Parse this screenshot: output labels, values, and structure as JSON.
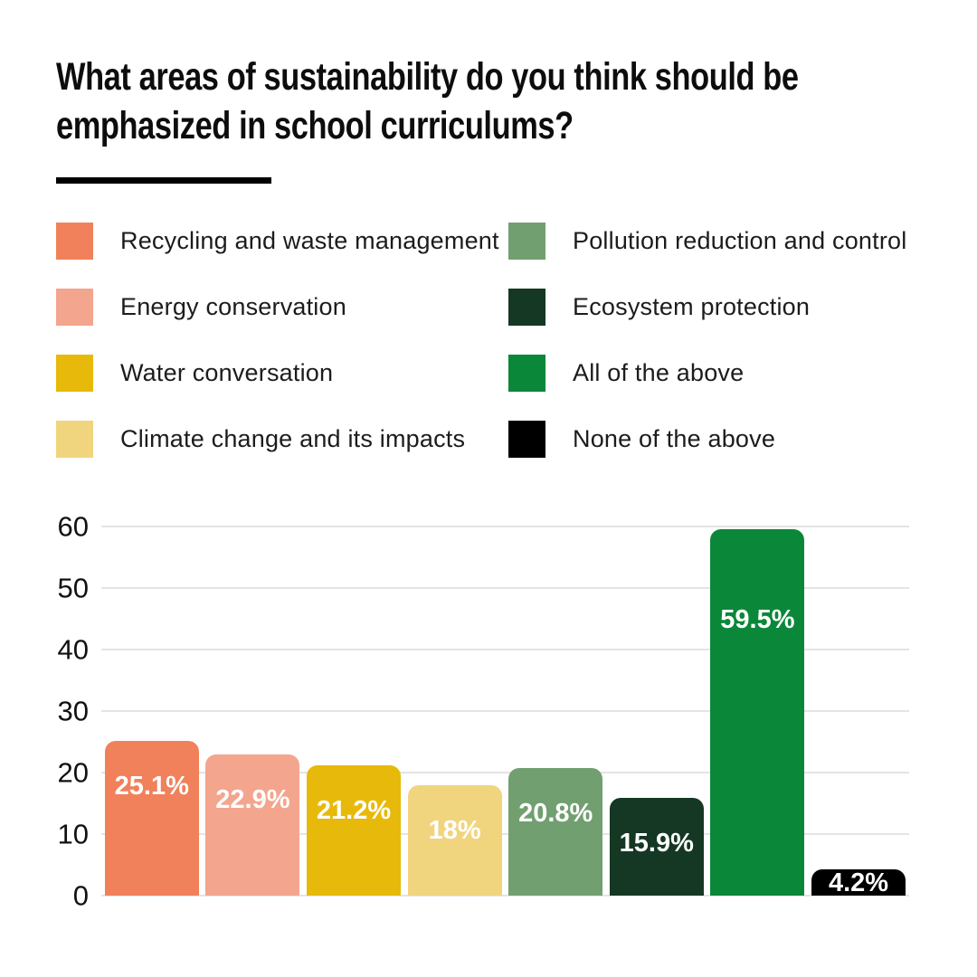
{
  "header": {
    "title": "What areas of sustainability do you think should be emphasized in school curriculums?",
    "title_lines": [
      "What areas of sustainability do you think should be",
      "emphasized in school curriculums?"
    ]
  },
  "colors": {
    "background": "#ffffff",
    "title_text": "#0d0d0d",
    "divider": "#000000",
    "gridline": "#e4e4e4",
    "axis_text": "#111111",
    "bar_label_text": "#ffffff"
  },
  "legend": {
    "items": [
      {
        "label": "Recycling and waste management",
        "color": "#f0815b"
      },
      {
        "label": "Energy conservation",
        "color": "#f3a58e"
      },
      {
        "label": "Water conversation",
        "color": "#e7b90a"
      },
      {
        "label": "Climate change and its impacts",
        "color": "#f1d47e"
      },
      {
        "label": "Pollution reduction and control",
        "color": "#719f70"
      },
      {
        "label": "Ecosystem protection",
        "color": "#143823"
      },
      {
        "label": "All of the above",
        "color": "#0b8739"
      },
      {
        "label": "None of the above",
        "color": "#000000"
      }
    ]
  },
  "chart_data": {
    "type": "bar",
    "title": "What areas of sustainability do you think should be emphasized in school curriculums?",
    "xlabel": "",
    "ylabel": "",
    "categories": [
      "Recycling and waste management",
      "Energy conservation",
      "Water conversation",
      "Climate change and its impacts",
      "Pollution reduction and control",
      "Ecosystem protection",
      "All of the above",
      "None of the above"
    ],
    "values": [
      25.1,
      22.9,
      21.2,
      18,
      20.8,
      15.9,
      59.5,
      4.2
    ],
    "value_labels": [
      "25.1%",
      "22.9%",
      "21.2%",
      "18%",
      "20.8%",
      "15.9%",
      "59.5%",
      "4.2%"
    ],
    "bar_colors": [
      "#f0815b",
      "#f3a58e",
      "#e7b90a",
      "#f1d47e",
      "#719f70",
      "#143823",
      "#0b8739",
      "#000000"
    ],
    "yticks": [
      0,
      10,
      20,
      30,
      40,
      50,
      60
    ],
    "ylim": [
      0,
      60
    ],
    "grid": true,
    "legend_position": "top"
  }
}
